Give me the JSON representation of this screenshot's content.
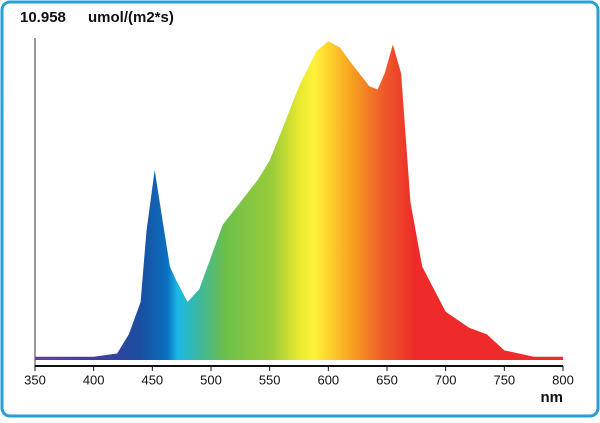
{
  "chart_data": {
    "type": "area",
    "title": "10.958",
    "y_label": "umol/(m2*s)",
    "x_label": "nm",
    "x": [
      350,
      400,
      420,
      430,
      440,
      445,
      452,
      458,
      465,
      470,
      480,
      490,
      500,
      510,
      525,
      540,
      550,
      560,
      575,
      590,
      600,
      610,
      620,
      635,
      642,
      648,
      655,
      662,
      670,
      680,
      700,
      720,
      735,
      750,
      775,
      800
    ],
    "values": [
      1,
      1,
      2,
      8,
      18,
      40,
      59,
      45,
      29,
      25,
      18,
      22,
      32,
      42,
      49,
      56,
      62,
      71,
      85,
      96,
      99,
      97,
      92,
      85,
      84,
      89,
      98,
      89,
      49,
      29,
      15,
      10,
      8,
      3,
      1,
      1
    ],
    "xlim": [
      350,
      800
    ],
    "xticks": [
      350,
      400,
      450,
      500,
      550,
      600,
      650,
      700,
      750,
      800
    ],
    "ylim": [
      0,
      100
    ]
  }
}
